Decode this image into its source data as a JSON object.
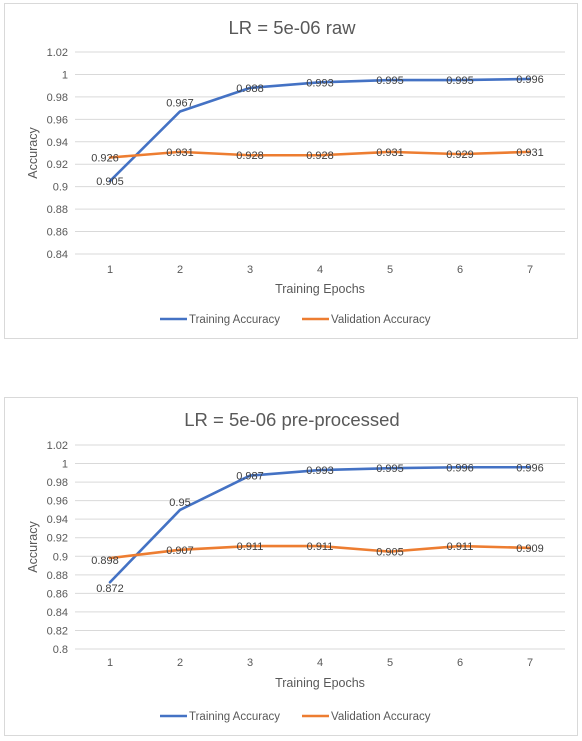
{
  "chart_data": [
    {
      "type": "line",
      "title": "LR = 5e-06 raw",
      "xlabel": "Training Epochs",
      "ylabel": "Accuracy",
      "categories": [
        "1",
        "2",
        "3",
        "4",
        "5",
        "6",
        "7"
      ],
      "ylim": [
        0.84,
        1.02
      ],
      "yticks": [
        "0.84",
        "0.86",
        "0.88",
        "0.9",
        "0.92",
        "0.94",
        "0.96",
        "0.98",
        "1",
        "1.02"
      ],
      "grid": true,
      "legend": "bottom",
      "series": [
        {
          "name": "Training Accuracy",
          "color": "#4472c4",
          "values": [
            0.905,
            0.967,
            0.988,
            0.993,
            0.995,
            0.995,
            0.996
          ],
          "labels": [
            "0.905",
            "0.967",
            "0.988",
            "0.993",
            "0.995",
            "0.995",
            "0.996"
          ]
        },
        {
          "name": "Validation Accuracy",
          "color": "#ed7d31",
          "values": [
            0.926,
            0.931,
            0.928,
            0.928,
            0.931,
            0.929,
            0.931
          ],
          "labels": [
            "0.926",
            "0.931",
            "0.928",
            "0.928",
            "0.931",
            "0.929",
            "0.931"
          ]
        }
      ]
    },
    {
      "type": "line",
      "title": "LR = 5e-06 pre-processed",
      "xlabel": "Training Epochs",
      "ylabel": "Accuracy",
      "categories": [
        "1",
        "2",
        "3",
        "4",
        "5",
        "6",
        "7"
      ],
      "ylim": [
        0.8,
        1.02
      ],
      "yticks": [
        "0.8",
        "0.82",
        "0.84",
        "0.86",
        "0.88",
        "0.9",
        "0.92",
        "0.94",
        "0.96",
        "0.98",
        "1",
        "1.02"
      ],
      "grid": true,
      "legend": "bottom",
      "series": [
        {
          "name": "Training Accuracy",
          "color": "#4472c4",
          "values": [
            0.872,
            0.95,
            0.987,
            0.993,
            0.995,
            0.996,
            0.996
          ],
          "labels": [
            "0.872",
            "0.95",
            "0.987",
            "0.993",
            "0.995",
            "0.996",
            "0.996"
          ]
        },
        {
          "name": "Validation Accuracy",
          "color": "#ed7d31",
          "values": [
            0.898,
            0.907,
            0.911,
            0.911,
            0.905,
            0.911,
            0.909
          ],
          "labels": [
            "0.898",
            "0.907",
            "0.911",
            "0.911",
            "0.905",
            "0.911",
            "0.909"
          ]
        }
      ]
    }
  ]
}
